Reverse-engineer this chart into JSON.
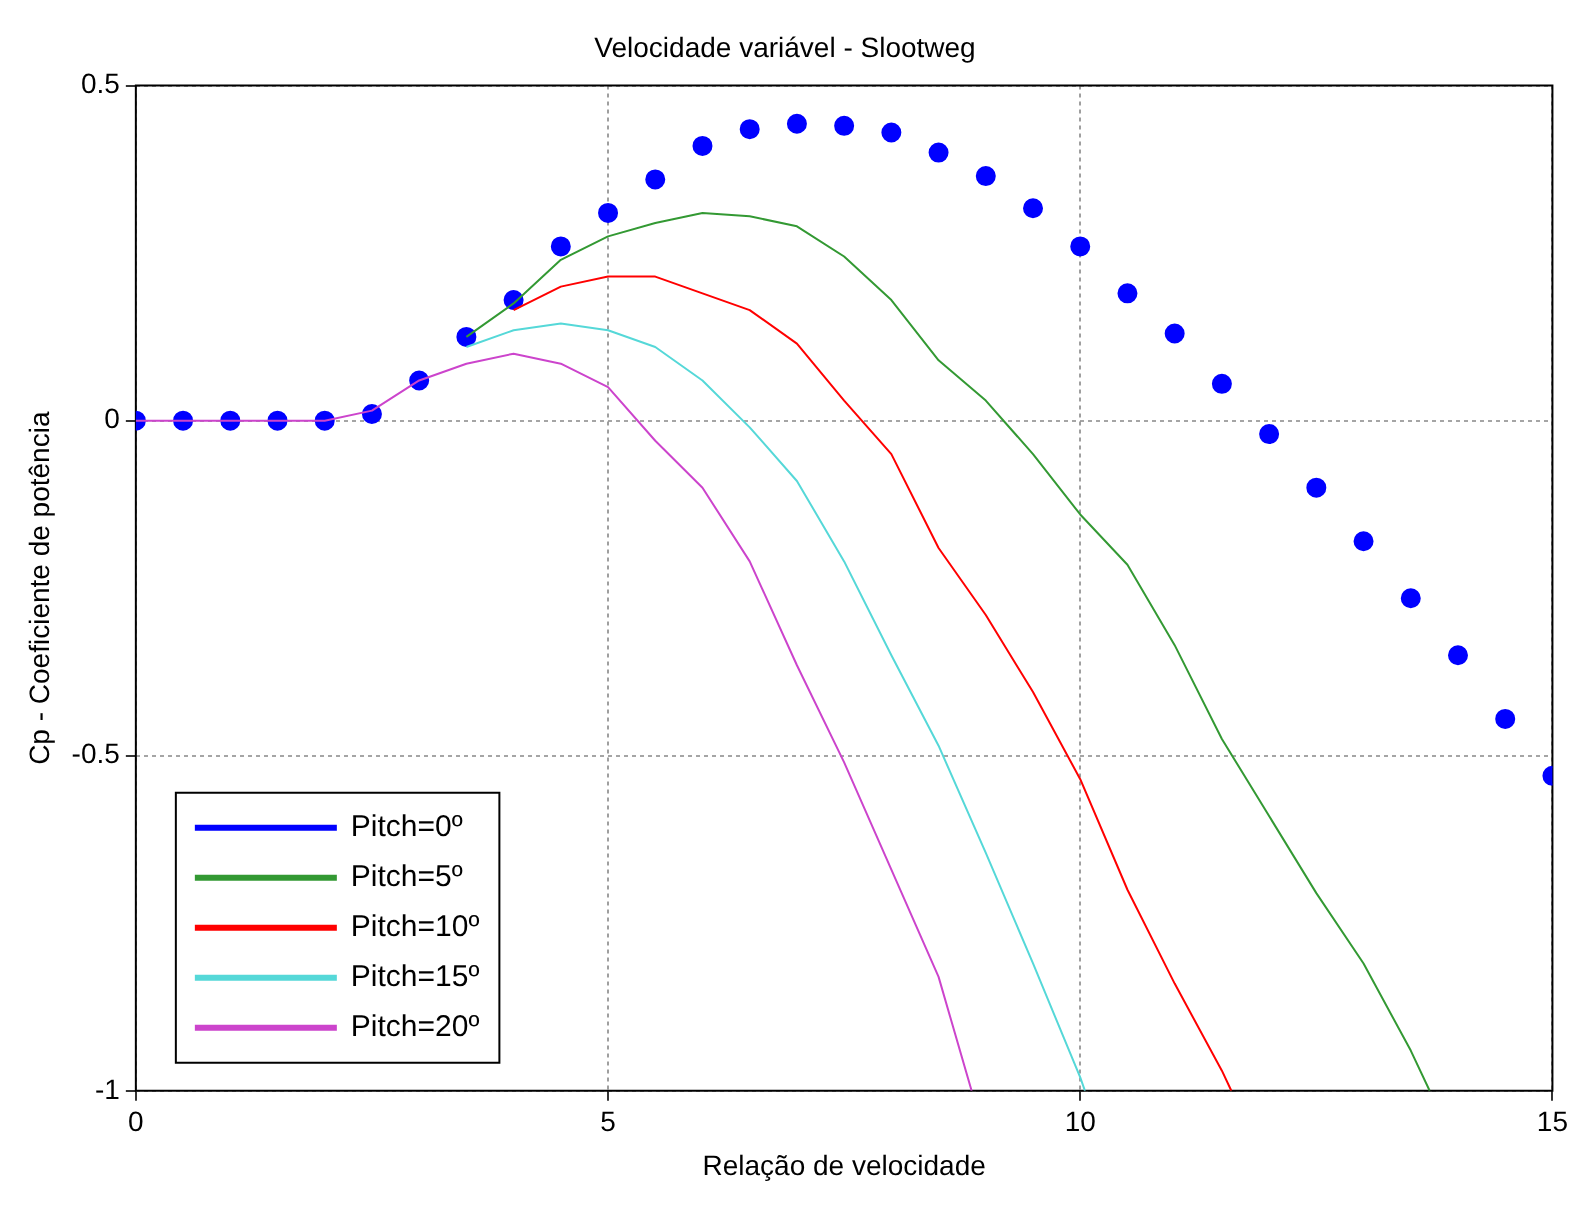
{
  "chart_data": {
    "type": "line",
    "title": "Velocidade variável - Slootweg",
    "xlabel": "Relação de velocidade",
    "ylabel": "Cp - Coeficiente de potência",
    "xlim": [
      0,
      15
    ],
    "ylim": [
      -1,
      0.5
    ],
    "xticks": [
      0,
      5,
      10,
      15
    ],
    "yticks": [
      -1,
      -0.5,
      0,
      0.5
    ],
    "grid": true,
    "legend": "bottom left",
    "marker": "none",
    "line_style": "solid",
    "series": [
      {
        "name": "Pitch=0º",
        "color": "#0000ff",
        "type": "scatter",
        "marker": "circle",
        "x": [
          0,
          0.5,
          1,
          1.5,
          2,
          2.5,
          3,
          3.5,
          4,
          4.5,
          5,
          5.5,
          6,
          6.5,
          7,
          7.5,
          8,
          8.5,
          9,
          9.5,
          10,
          10.5,
          11,
          11.5,
          12,
          12.5,
          13,
          13.5,
          14,
          14.5,
          15
        ],
        "values": [
          0,
          0,
          0,
          0,
          0,
          0.01,
          0.06,
          0.125,
          0.18,
          0.26,
          0.31,
          0.36,
          0.41,
          0.435,
          0.443,
          0.44,
          0.43,
          0.4,
          0.365,
          0.317,
          0.26,
          0.19,
          0.13,
          0.055,
          -0.02,
          -0.1,
          -0.18,
          -0.265,
          -0.35,
          -0.445,
          -0.53
        ]
      },
      {
        "name": "Pitch=5º",
        "color": "#339933",
        "x": [
          3.5,
          4,
          4.5,
          5,
          5.5,
          6,
          6.5,
          7,
          7.5,
          8,
          8.5,
          9,
          9.5,
          10,
          10.5,
          11,
          11.5,
          12,
          12.5,
          13,
          13.5,
          13.7
        ],
        "values": [
          0.125,
          0.175,
          0.24,
          0.275,
          0.295,
          0.31,
          0.305,
          0.29,
          0.245,
          0.18,
          0.09,
          0.03,
          -0.05,
          -0.14,
          -0.215,
          -0.335,
          -0.475,
          -0.59,
          -0.705,
          -0.81,
          -0.94,
          -1
        ]
      },
      {
        "name": "Pitch=10º",
        "color": "#ff0000",
        "x": [
          4,
          4.5,
          5,
          5.5,
          6,
          6.5,
          7,
          7.5,
          8,
          8.5,
          9,
          9.5,
          10,
          10.5,
          11,
          11.5,
          11.6
        ],
        "values": [
          0.165,
          0.2,
          0.215,
          0.215,
          0.19,
          0.165,
          0.115,
          0.03,
          -0.05,
          -0.19,
          -0.29,
          -0.405,
          -0.535,
          -0.7,
          -0.84,
          -0.97,
          -1
        ]
      },
      {
        "name": "Pitch=15º",
        "color": "#55d8d8",
        "x": [
          3.5,
          4,
          4.5,
          5,
          5.5,
          6,
          6.5,
          7,
          7.5,
          8,
          8.5,
          9,
          9.5,
          10,
          10.05
        ],
        "values": [
          0.11,
          0.135,
          0.145,
          0.135,
          0.11,
          0.06,
          -0.01,
          -0.09,
          -0.21,
          -0.35,
          -0.485,
          -0.645,
          -0.81,
          -0.98,
          -1
        ]
      },
      {
        "name": "Pitch=20º",
        "color": "#cc44cc",
        "x": [
          0,
          1,
          2,
          2.5,
          3,
          3.5,
          4,
          4.5,
          5,
          5.5,
          6,
          6.5,
          7,
          7.5,
          8,
          8.5,
          8.85
        ],
        "values": [
          0,
          0,
          0,
          0.015,
          0.06,
          0.085,
          0.1,
          0.085,
          0.05,
          -0.03,
          -0.1,
          -0.21,
          -0.365,
          -0.51,
          -0.67,
          -0.83,
          -1
        ]
      }
    ]
  }
}
